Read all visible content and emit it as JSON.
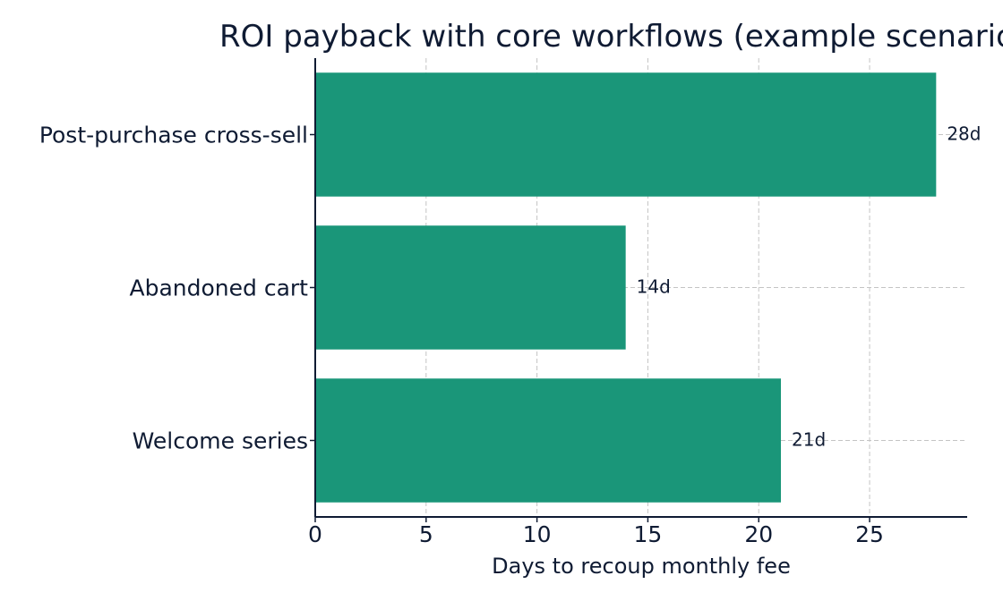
{
  "chart_data": {
    "type": "bar",
    "orientation": "horizontal",
    "title": "ROI payback with core workflows (example scenario)",
    "xlabel": "Days to recoup monthly fee",
    "ylabel": "",
    "categories": [
      "Welcome series",
      "Abandoned cart",
      "Post-purchase cross-sell"
    ],
    "values": [
      21,
      14,
      28
    ],
    "data_labels": [
      "21d",
      "14d",
      "28d"
    ],
    "xlim": [
      0,
      29.4
    ],
    "xticks": [
      0,
      5,
      10,
      15,
      20,
      25
    ],
    "grid": true,
    "bar_color": "#1a9679"
  }
}
